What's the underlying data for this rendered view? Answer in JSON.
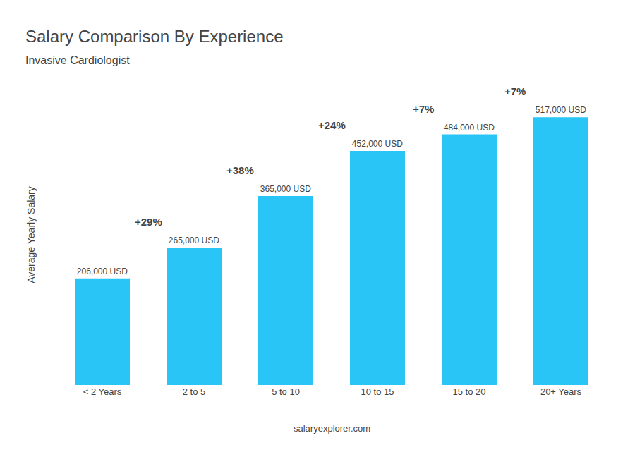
{
  "chart_data": {
    "type": "bar",
    "title": "Salary Comparison By Experience",
    "subtitle": "Invasive Cardiologist",
    "ylabel": "Average Yearly Salary",
    "categories": [
      "< 2 Years",
      "2 to 5",
      "5 to 10",
      "10 to 15",
      "15 to 20",
      "20+ Years"
    ],
    "values": [
      206000,
      265000,
      365000,
      452000,
      484000,
      517000
    ],
    "value_labels": [
      "206,000 USD",
      "265,000 USD",
      "365,000 USD",
      "452,000 USD",
      "484,000 USD",
      "517,000 USD"
    ],
    "data_labels": true,
    "color": "#29c5f6",
    "ylim": [
      0,
      580000
    ],
    "tick_labels": "x",
    "grid": false,
    "annotations": [
      {
        "text": "+29%",
        "between": [
          "< 2 Years",
          "2 to 5"
        ]
      },
      {
        "text": "+38%",
        "between": [
          "2 to 5",
          "5 to 10"
        ]
      },
      {
        "text": "+24%",
        "between": [
          "5 to 10",
          "10 to 15"
        ]
      },
      {
        "text": "+7%",
        "between": [
          "10 to 15",
          "15 to 20"
        ]
      },
      {
        "text": "+7%",
        "between": [
          "15 to 20",
          "20+ Years"
        ]
      },
      {
        "text": "salary"
      },
      {
        "text": "explorer.com"
      }
    ]
  }
}
